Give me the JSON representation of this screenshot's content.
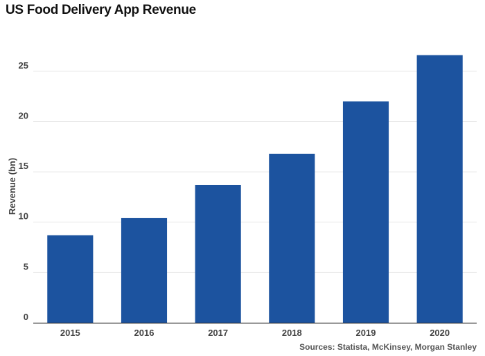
{
  "chart_data": {
    "type": "bar",
    "title": "US Food Delivery App Revenue",
    "ylabel": "Revenue (bn)",
    "xlabel": "",
    "categories": [
      "2015",
      "2016",
      "2017",
      "2018",
      "2019",
      "2020"
    ],
    "values": [
      8.7,
      10.4,
      13.7,
      16.8,
      22.0,
      26.6
    ],
    "ylim": [
      0,
      28.5
    ],
    "yticks": [
      0,
      5,
      10,
      15,
      20,
      25
    ],
    "grid": true,
    "bar_color": "#1c539f",
    "source": "Sources: Statista, McKinsey, Morgan Stanley"
  }
}
